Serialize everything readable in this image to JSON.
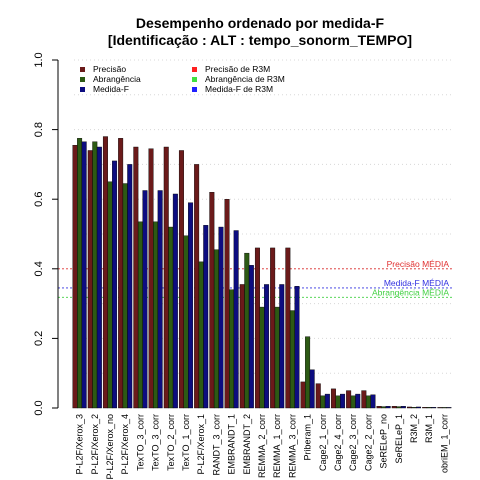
{
  "chart_data": {
    "type": "bar",
    "title_line1": "Desempenho ordenado por medida-F",
    "title_line2": "[Identificação : ALT : tempo_sonorm_TEMPO]",
    "xlabel": "",
    "ylabel": "",
    "ylim": [
      0,
      1
    ],
    "yticks": [
      0.0,
      0.2,
      0.4,
      0.6,
      0.8,
      1.0
    ],
    "ytick_labels": [
      "0.0",
      "0.2",
      "0.4",
      "0.6",
      "0.8",
      "1.0"
    ],
    "grid": true,
    "legend_position": "top-left",
    "categories": [
      "P-L2F/Xerox_3",
      "P-L2F/Xerox_2",
      "P-L2F/Xerox_no",
      "P-L2F/Xerox_4",
      "TexTO_3_corr",
      "TexTO_3_corr",
      "TexTO_2_corr",
      "TexTO_1_corr",
      "P-L2F/Xerox_1",
      "RANDT_3_corr",
      "EMBRANDT_1",
      "EMBRANDT_2",
      "REMMA_2_corr",
      "REMMA_1_corr",
      "REMMA_3_corr",
      "Priberam_1",
      "Cage2_1_corr",
      "Cage2_4_corr",
      "Cage2_3_corr",
      "Cage2_2_corr",
      "SeRELeP_no",
      "SeRELeP_1",
      "R3M_2",
      "R3M_1",
      "obriEM_1_corr"
    ],
    "series": [
      {
        "name": "Precisão",
        "color": "#6b1a1a",
        "values": [
          0.755,
          0.74,
          0.78,
          0.775,
          0.75,
          0.745,
          0.75,
          0.74,
          0.7,
          0.62,
          0.6,
          0.355,
          0.46,
          0.46,
          0.46,
          0.075,
          0.07,
          0.055,
          0.05,
          0.05,
          0.005,
          0.005,
          0.003,
          0.002,
          0.001
        ]
      },
      {
        "name": "Abrangência",
        "color": "#2d5a14",
        "values": [
          0.775,
          0.765,
          0.65,
          0.645,
          0.535,
          0.535,
          0.52,
          0.495,
          0.42,
          0.455,
          0.34,
          0.445,
          0.29,
          0.29,
          0.28,
          0.205,
          0.035,
          0.035,
          0.035,
          0.035,
          0.004,
          0.004,
          0.002,
          0.002,
          0.001
        ]
      },
      {
        "name": "Medida-F",
        "color": "#0d0d80",
        "values": [
          0.765,
          0.75,
          0.71,
          0.7,
          0.625,
          0.625,
          0.615,
          0.59,
          0.525,
          0.52,
          0.51,
          0.41,
          0.355,
          0.355,
          0.35,
          0.11,
          0.04,
          0.04,
          0.04,
          0.038,
          0.005,
          0.005,
          0.003,
          0.002,
          0.001
        ]
      }
    ],
    "legend": [
      {
        "label": "Precisão",
        "color": "#6b1a1a"
      },
      {
        "label": "Abrangência",
        "color": "#2d5a14"
      },
      {
        "label": "Medida-F",
        "color": "#0d0d80"
      },
      {
        "label": "Precisão de R3M",
        "color": "#ff2020"
      },
      {
        "label": "Abrangência de R3M",
        "color": "#40e040"
      },
      {
        "label": "Medida-F de R3M",
        "color": "#2020ff"
      }
    ],
    "reference_lines": [
      {
        "label": "Precisão MÉDIA",
        "value": 0.4,
        "color": "#e03030"
      },
      {
        "label": "Medida-F MÉDIA",
        "value": 0.345,
        "color": "#3030e0"
      },
      {
        "label": "Abrangência MÉDIA",
        "value": 0.318,
        "color": "#40d040"
      }
    ]
  }
}
